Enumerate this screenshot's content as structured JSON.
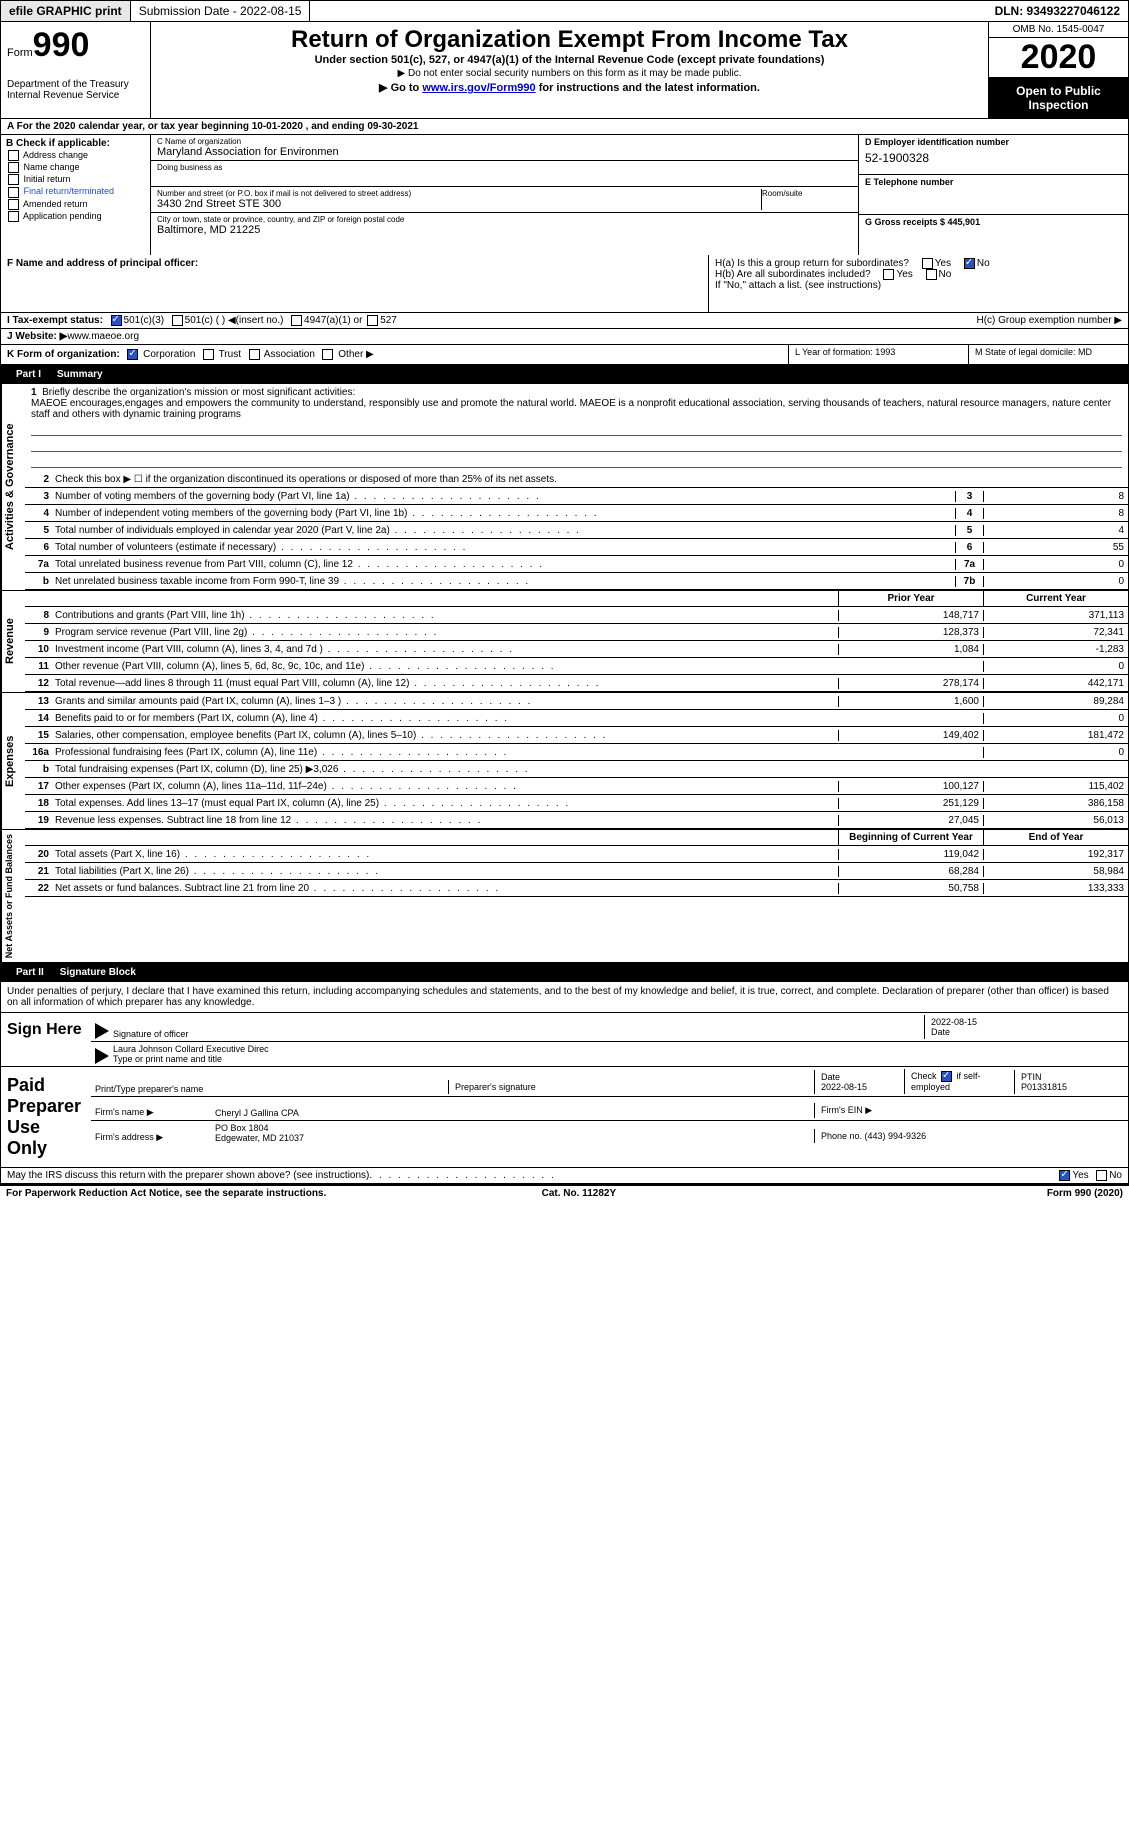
{
  "topbar": {
    "efile": "efile GRAPHIC print",
    "sub_label": "Submission Date - 2022-08-15",
    "dln": "DLN: 93493227046122"
  },
  "header": {
    "form_label": "Form",
    "form_num": "990",
    "dept": "Department of the Treasury\nInternal Revenue Service",
    "title": "Return of Organization Exempt From Income Tax",
    "sub1": "Under section 501(c), 527, or 4947(a)(1) of the Internal Revenue Code (except private foundations)",
    "sub2": "▶ Do not enter social security numbers on this form as it may be made public.",
    "sub3_pre": "▶ Go to ",
    "sub3_link": "www.irs.gov/Form990",
    "sub3_post": " for instructions and the latest information.",
    "omb": "OMB No. 1545-0047",
    "year": "2020",
    "open": "Open to Public Inspection"
  },
  "row_a": "A For the 2020 calendar year, or tax year beginning 10-01-2020    , and ending 09-30-2021",
  "section_b": {
    "hdr": "B Check if applicable:",
    "opts": [
      "Address change",
      "Name change",
      "Initial return",
      "Final return/terminated",
      "Amended return",
      "Application pending"
    ]
  },
  "section_c": {
    "name_lab": "C Name of organization",
    "name": "Maryland Association for Environmen",
    "dba_lab": "Doing business as",
    "dba": "",
    "addr_lab": "Number and street (or P.O. box if mail is not delivered to street address)",
    "room_lab": "Room/suite",
    "addr": "3430 2nd Street STE 300",
    "city_lab": "City or town, state or province, country, and ZIP or foreign postal code",
    "city": "Baltimore, MD  21225"
  },
  "section_d": {
    "lab": "D Employer identification number",
    "val": "52-1900328"
  },
  "section_e": {
    "lab": "E Telephone number",
    "val": ""
  },
  "section_g": {
    "lab": "G Gross receipts $ 445,901"
  },
  "section_f": {
    "lab": "F  Name and address of principal officer:"
  },
  "section_h": {
    "ha": "H(a)  Is this a group return for subordinates?",
    "hb": "H(b)  Are all subordinates included?",
    "hb2": "If \"No,\" attach a list. (see instructions)",
    "hc": "H(c)  Group exemption number ▶"
  },
  "row_i": {
    "label": "I  Tax-exempt status:",
    "o1": "501(c)(3)",
    "o2": "501(c) (  ) ◀(insert no.)",
    "o3": "4947(a)(1) or",
    "o4": "527"
  },
  "row_j": {
    "label": "J  Website: ▶",
    "val": " www.maeoe.org"
  },
  "row_k": {
    "label": "K Form of organization:",
    "o1": "Corporation",
    "o2": "Trust",
    "o3": "Association",
    "o4": "Other ▶"
  },
  "row_l": {
    "label": "L Year of formation: 1993"
  },
  "row_m": {
    "label": "M State of legal domicile: MD"
  },
  "part1": {
    "hdr": "Part I",
    "title": "Summary"
  },
  "mission": {
    "num": "1",
    "label": "Briefly describe the organization's mission or most significant activities:",
    "text": "MAEOE encourages,engages and empowers the community to understand, responsibly use and promote the natural world. MAEOE is a nonprofit educational association, serving thousands of teachers, natural resource managers, nature center staff and others with dynamic training programs"
  },
  "lines_gov": [
    {
      "n": "2",
      "d": "Check this box ▶ ☐ if the organization discontinued its operations or disposed of more than 25% of its net assets.",
      "b": "",
      "v": ""
    },
    {
      "n": "3",
      "d": "Number of voting members of the governing body (Part VI, line 1a)",
      "b": "3",
      "v": "8"
    },
    {
      "n": "4",
      "d": "Number of independent voting members of the governing body (Part VI, line 1b)",
      "b": "4",
      "v": "8"
    },
    {
      "n": "5",
      "d": "Total number of individuals employed in calendar year 2020 (Part V, line 2a)",
      "b": "5",
      "v": "4"
    },
    {
      "n": "6",
      "d": "Total number of volunteers (estimate if necessary)",
      "b": "6",
      "v": "55"
    },
    {
      "n": "7a",
      "d": "Total unrelated business revenue from Part VIII, column (C), line 12",
      "b": "7a",
      "v": "0"
    },
    {
      "n": "b",
      "d": "Net unrelated business taxable income from Form 990-T, line 39",
      "b": "7b",
      "v": "0"
    }
  ],
  "colhdr_rev": {
    "c1": "Prior Year",
    "c2": "Current Year"
  },
  "lines_rev": [
    {
      "n": "8",
      "d": "Contributions and grants (Part VIII, line 1h)",
      "v1": "148,717",
      "v2": "371,113"
    },
    {
      "n": "9",
      "d": "Program service revenue (Part VIII, line 2g)",
      "v1": "128,373",
      "v2": "72,341"
    },
    {
      "n": "10",
      "d": "Investment income (Part VIII, column (A), lines 3, 4, and 7d )",
      "v1": "1,084",
      "v2": "-1,283"
    },
    {
      "n": "11",
      "d": "Other revenue (Part VIII, column (A), lines 5, 6d, 8c, 9c, 10c, and 11e)",
      "v1": "",
      "v2": "0"
    },
    {
      "n": "12",
      "d": "Total revenue—add lines 8 through 11 (must equal Part VIII, column (A), line 12)",
      "v1": "278,174",
      "v2": "442,171"
    }
  ],
  "lines_exp": [
    {
      "n": "13",
      "d": "Grants and similar amounts paid (Part IX, column (A), lines 1–3 )",
      "v1": "1,600",
      "v2": "89,284"
    },
    {
      "n": "14",
      "d": "Benefits paid to or for members (Part IX, column (A), line 4)",
      "v1": "",
      "v2": "0"
    },
    {
      "n": "15",
      "d": "Salaries, other compensation, employee benefits (Part IX, column (A), lines 5–10)",
      "v1": "149,402",
      "v2": "181,472"
    },
    {
      "n": "16a",
      "d": "Professional fundraising fees (Part IX, column (A), line 11e)",
      "v1": "",
      "v2": "0"
    },
    {
      "n": "b",
      "d": "Total fundraising expenses (Part IX, column (D), line 25) ▶3,026",
      "v1": "shade",
      "v2": "shade"
    },
    {
      "n": "17",
      "d": "Other expenses (Part IX, column (A), lines 11a–11d, 11f–24e)",
      "v1": "100,127",
      "v2": "115,402"
    },
    {
      "n": "18",
      "d": "Total expenses. Add lines 13–17 (must equal Part IX, column (A), line 25)",
      "v1": "251,129",
      "v2": "386,158"
    },
    {
      "n": "19",
      "d": "Revenue less expenses. Subtract line 18 from line 12",
      "v1": "27,045",
      "v2": "56,013"
    }
  ],
  "colhdr_net": {
    "c1": "Beginning of Current Year",
    "c2": "End of Year"
  },
  "lines_net": [
    {
      "n": "20",
      "d": "Total assets (Part X, line 16)",
      "v1": "119,042",
      "v2": "192,317"
    },
    {
      "n": "21",
      "d": "Total liabilities (Part X, line 26)",
      "v1": "68,284",
      "v2": "58,984"
    },
    {
      "n": "22",
      "d": "Net assets or fund balances. Subtract line 21 from line 20",
      "v1": "50,758",
      "v2": "133,333"
    }
  ],
  "part2": {
    "hdr": "Part II",
    "title": "Signature Block"
  },
  "sig_decl": "Under penalties of perjury, I declare that I have examined this return, including accompanying schedules and statements, and to the best of my knowledge and belief, it is true, correct, and complete. Declaration of preparer (other than officer) is based on all information of which preparer has any knowledge.",
  "sign_here": "Sign Here",
  "sig_officer_lab": "Signature of officer",
  "sig_date": "2022-08-15",
  "sig_date_lab": "Date",
  "sig_name": "Laura Johnson Collard  Executive Direc",
  "sig_name_lab": "Type or print name and title",
  "paid_prep": "Paid Preparer Use Only",
  "prep": {
    "name_lab": "Print/Type preparer's name",
    "sig_lab": "Preparer's signature",
    "date_lab": "Date",
    "date": "2022-08-15",
    "check_lab": "Check ☑ if self-employed",
    "ptin_lab": "PTIN",
    "ptin": "P01331815",
    "firm_name_lab": "Firm's name    ▶",
    "firm_name": "Cheryl J Gallina CPA",
    "firm_ein_lab": "Firm's EIN ▶",
    "firm_addr_lab": "Firm's address ▶",
    "firm_addr1": "PO Box 1804",
    "firm_addr2": "Edgewater, MD  21037",
    "phone_lab": "Phone no. (443) 994-9326"
  },
  "may_irs": "May the IRS discuss this return with the preparer shown above? (see instructions)",
  "footer": {
    "l": "For Paperwork Reduction Act Notice, see the separate instructions.",
    "c": "Cat. No. 11282Y",
    "r": "Form 990 (2020)"
  },
  "side": {
    "gov": "Activities & Governance",
    "rev": "Revenue",
    "exp": "Expenses",
    "net": "Net Assets or Fund Balances"
  }
}
